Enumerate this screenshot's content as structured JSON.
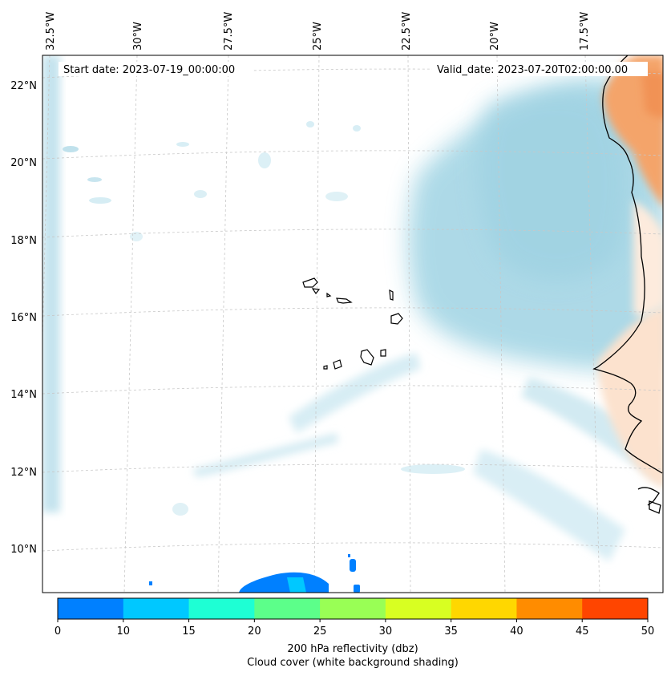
{
  "map": {
    "start_date": "Start date: 2023-07-19_00:00:00",
    "valid_date": "Valid_date: 2023-07-20T02:00:00.00",
    "lon_labels": [
      "32.5°W",
      "30°W",
      "27.5°W",
      "25°W",
      "22.5°W",
      "20°W",
      "17.5°W"
    ],
    "lat_labels": [
      "22°N",
      "20°N",
      "18°N",
      "16°N",
      "14°N",
      "12°N",
      "10°N"
    ]
  },
  "colorbar": {
    "ticks": [
      "0",
      "10",
      "15",
      "20",
      "25",
      "30",
      "35",
      "40",
      "45",
      "50"
    ],
    "colors": [
      "#0080ff",
      "#00c8ff",
      "#1effd4",
      "#5cff8a",
      "#99ff55",
      "#d8ff22",
      "#ffd700",
      "#ff8c00",
      "#ff4500"
    ],
    "label_line1": "200 hPa reflectivity (dbz)",
    "label_line2": "Cloud cover (white background shading)"
  },
  "colors": {
    "cloud": "#a9d8e6",
    "land_warm": "#f4a46a",
    "reflectivity_low": "#0080ff"
  }
}
